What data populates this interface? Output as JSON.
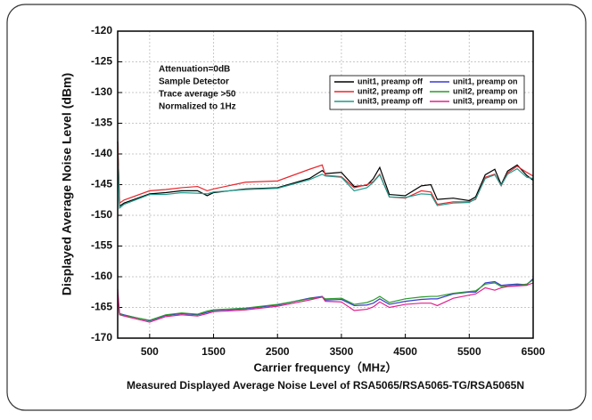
{
  "chart_data": {
    "type": "line",
    "xlabel": "Carrier frequency（MHz）",
    "ylabel": "Displayed Average Noise Level (dBm)",
    "caption": "Measured Displayed Average Noise Level of RSA5065/RSA5065-TG/RSA5065N",
    "annotations": [
      "Attenuation=0dB",
      "Sample Detector",
      "Trace average >50",
      "Normalized to 1Hz"
    ],
    "x": [
      0,
      30,
      100,
      500,
      750,
      1000,
      1250,
      1400,
      1500,
      2000,
      2500,
      3000,
      3200,
      3250,
      3500,
      3700,
      3900,
      4000,
      4100,
      4250,
      4500,
      4750,
      4900,
      5000,
      5250,
      5500,
      5600,
      5750,
      5900,
      6000,
      6100,
      6250,
      6400,
      6500
    ],
    "xlim": [
      0,
      6500
    ],
    "xticks": [
      500,
      1500,
      2500,
      3500,
      4500,
      5500,
      6500
    ],
    "ylim": [
      -170,
      -120
    ],
    "yticks": [
      -170,
      -165,
      -160,
      -155,
      -150,
      -145,
      -140,
      -135,
      -130,
      -125,
      -120
    ],
    "grid": true,
    "legend_position": "upper right",
    "series": [
      {
        "name": "unit1, preamp off",
        "color": "#000000",
        "values": [
          -138,
          -148.5,
          -148,
          -146.5,
          -146.3,
          -146,
          -146,
          -146.8,
          -146.3,
          -145.7,
          -145.5,
          -144,
          -142.7,
          -143.2,
          -143,
          -145.3,
          -145.1,
          -144,
          -142.2,
          -146.6,
          -146.8,
          -145.2,
          -145,
          -147.4,
          -147.2,
          -147.6,
          -147,
          -143.4,
          -142.5,
          -145,
          -142.8,
          -141.8,
          -143.5,
          -144.3
        ]
      },
      {
        "name": "unit1, preamp on",
        "color": "#3a3ad0",
        "values": [
          -163,
          -166,
          -166.2,
          -167.2,
          -166.3,
          -166,
          -166.2,
          -165.8,
          -165.5,
          -165.2,
          -164.6,
          -163.5,
          -163.2,
          -163.8,
          -163.7,
          -164.7,
          -164.6,
          -164.3,
          -163.6,
          -164.5,
          -164,
          -163.7,
          -163.6,
          -163.6,
          -162.8,
          -162.5,
          -162.5,
          -161,
          -160.8,
          -161.4,
          -161.3,
          -161.2,
          -161.3,
          -160.3
        ]
      },
      {
        "name": "unit2, preamp off",
        "color": "#e8262d",
        "values": [
          -138,
          -148,
          -147.5,
          -146,
          -145.8,
          -145.5,
          -145.3,
          -146,
          -145.7,
          -144.6,
          -144.4,
          -142.5,
          -141.8,
          -143.5,
          -143.7,
          -145.5,
          -145,
          -144.5,
          -143.3,
          -147,
          -147.2,
          -146,
          -146.2,
          -148.2,
          -147.8,
          -147.8,
          -147.4,
          -143.8,
          -143.3,
          -145.2,
          -143.1,
          -142,
          -143,
          -143.6
        ]
      },
      {
        "name": "unit2, preamp on",
        "color": "#2a9a2a",
        "values": [
          -164,
          -166.1,
          -166.3,
          -167.1,
          -166.2,
          -165.9,
          -166.1,
          -165.6,
          -165.4,
          -165.1,
          -164.5,
          -163.6,
          -163.3,
          -163.6,
          -163.5,
          -164.5,
          -164.2,
          -163.8,
          -163.2,
          -164.2,
          -163.6,
          -163.3,
          -163.2,
          -163.2,
          -162.7,
          -162.4,
          -162.3,
          -161.2,
          -161,
          -161.6,
          -161.5,
          -161.4,
          -161.2,
          -160.5
        ]
      },
      {
        "name": "unit3, preamp off",
        "color": "#1e9a8c",
        "values": [
          -140,
          -148.8,
          -148.2,
          -146.6,
          -146.6,
          -146.3,
          -146.4,
          -146.5,
          -146.2,
          -145.8,
          -145.6,
          -144.2,
          -143.3,
          -143.6,
          -143.8,
          -146,
          -145.5,
          -144.6,
          -143.4,
          -147,
          -147.1,
          -146.5,
          -146.6,
          -148.4,
          -148,
          -147.9,
          -147.3,
          -144,
          -143.4,
          -145.1,
          -143.3,
          -142.4,
          -143.8,
          -144
        ]
      },
      {
        "name": "unit3, preamp on",
        "color": "#e0208c",
        "values": [
          -162,
          -166.2,
          -166.4,
          -167.4,
          -166.5,
          -166.2,
          -166.4,
          -166,
          -165.7,
          -165.4,
          -164.8,
          -163.8,
          -163.3,
          -164,
          -164.1,
          -165.5,
          -165.3,
          -164.9,
          -164.1,
          -165,
          -164.5,
          -164.3,
          -164.3,
          -164.7,
          -163.5,
          -163,
          -162.8,
          -161.8,
          -162.2,
          -161.8,
          -161.6,
          -161.5,
          -161.4,
          -161
        ]
      }
    ]
  }
}
